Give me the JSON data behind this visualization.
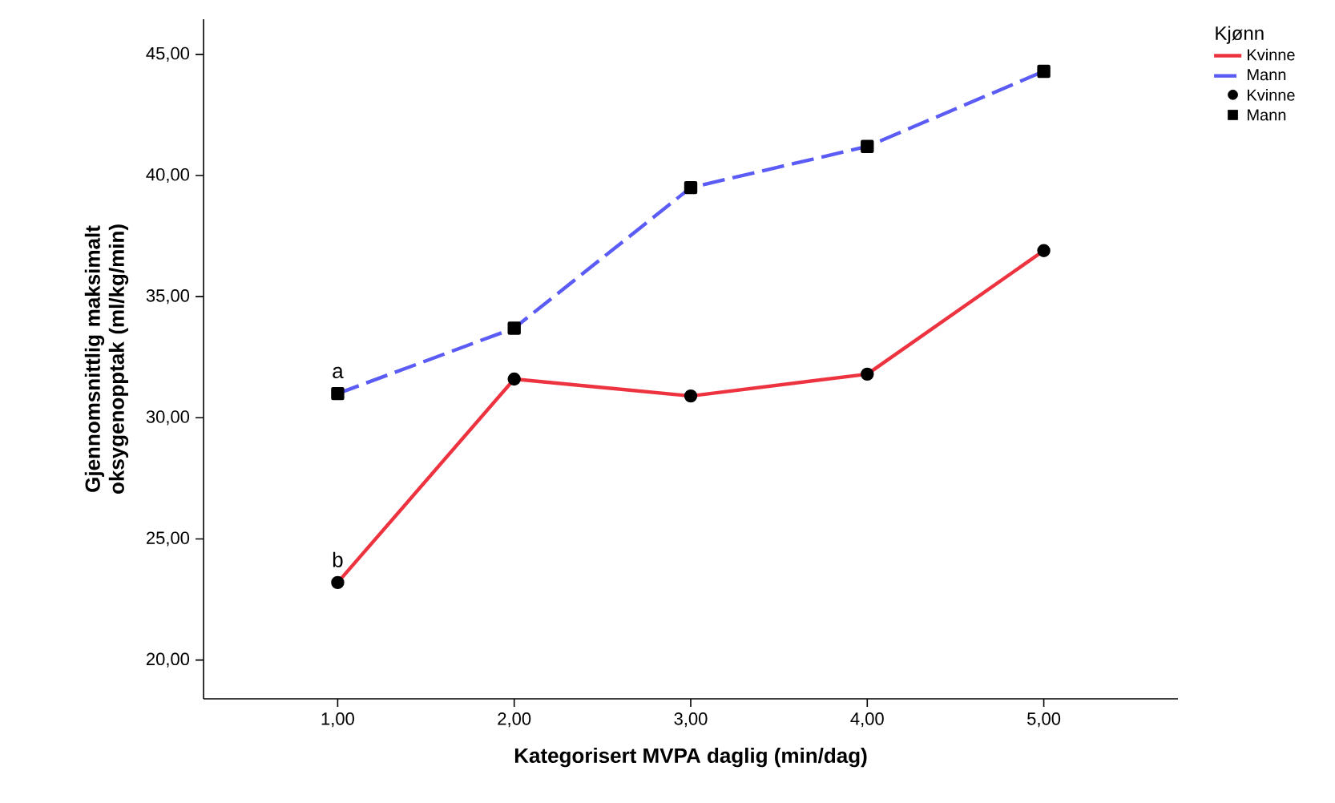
{
  "chart_data": {
    "type": "line",
    "xlabel": "Kategorisert MVPA daglig (min/dag)",
    "ylabel": "Gjennomsnittlig maksimalt oksygenopptak (ml/kg/min)",
    "legend_title": "Kjønn",
    "x": [
      1,
      2,
      3,
      4,
      5
    ],
    "series": [
      {
        "name": "Kvinne",
        "color": "#ee3340",
        "values": [
          23.2,
          31.6,
          30.9,
          31.8,
          36.9
        ],
        "line_style": "solid",
        "marker": "circle"
      },
      {
        "name": "Mann",
        "color": "#5b5bf5",
        "values": [
          31.0,
          33.7,
          39.5,
          41.2,
          44.3
        ],
        "line_style": "dashed",
        "marker": "square"
      }
    ],
    "xlim": [
      0.24,
      5.76
    ],
    "ylim": [
      18.4,
      46.45
    ],
    "xticks": [
      {
        "value": 1,
        "label": "1,00"
      },
      {
        "value": 2,
        "label": "2,00"
      },
      {
        "value": 3,
        "label": "3,00"
      },
      {
        "value": 4,
        "label": "4,00"
      },
      {
        "value": 5,
        "label": "5,00"
      }
    ],
    "yticks": [
      {
        "value": 20,
        "label": "20,00"
      },
      {
        "value": 25,
        "label": "25,00"
      },
      {
        "value": 30,
        "label": "30,00"
      },
      {
        "value": 35,
        "label": "35,00"
      },
      {
        "value": 40,
        "label": "40,00"
      },
      {
        "value": 45,
        "label": "45,00"
      }
    ],
    "annotations": [
      {
        "text": "a",
        "x": 1,
        "y": 31.0
      },
      {
        "text": "b",
        "x": 1,
        "y": 23.2
      }
    ],
    "grid": false,
    "legend": "right"
  }
}
